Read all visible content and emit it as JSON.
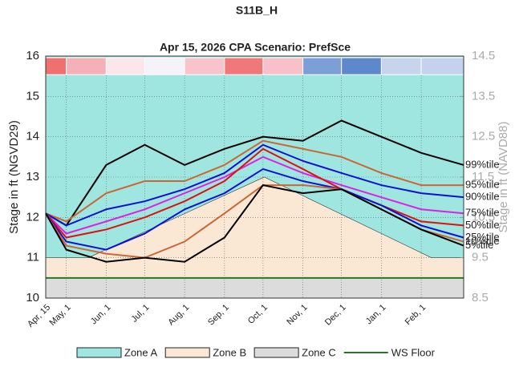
{
  "chart_data": {
    "type": "line",
    "suptitle": "S11B_H",
    "title": "Apr 15, 2026  CPA Scenario: PrefSce",
    "ylabel": "Stage in ft (NGVD29)",
    "y2label": "Stage in ft (NAVD88)",
    "xlim": [
      0,
      325
    ],
    "xticks": [
      {
        "value": 0,
        "label": "Apr, 15"
      },
      {
        "value": 16,
        "label": "May, 1"
      },
      {
        "value": 47,
        "label": "Jun, 1"
      },
      {
        "value": 77,
        "label": "Jul, 1"
      },
      {
        "value": 108,
        "label": "Aug, 1"
      },
      {
        "value": 139,
        "label": "Sep, 1"
      },
      {
        "value": 169,
        "label": "Oct, 1"
      },
      {
        "value": 200,
        "label": "Nov, 1"
      },
      {
        "value": 230,
        "label": "Dec, 1"
      },
      {
        "value": 261,
        "label": "Jan, 1"
      },
      {
        "value": 292,
        "label": "Feb, 1"
      }
    ],
    "ylim": [
      10,
      16
    ],
    "yticks": [
      10,
      11,
      12,
      13,
      14,
      15,
      16
    ],
    "y2lim": [
      8.5,
      14.5
    ],
    "y2ticks": [
      8.5,
      9.5,
      10.5,
      11.5,
      12.5,
      13.5,
      14.5
    ],
    "strip_colors": [
      "#f07070",
      "#f5b0b8",
      "#fde6ea",
      "#f5f2fa",
      "#f8c4cc",
      "#f07878",
      "#f8c0c8",
      "#7d9fd8",
      "#5e88cc",
      "#c8d4ee",
      "#c4d2ee"
    ],
    "zones": [
      {
        "name": "Zone A",
        "color": "#9ee6df"
      },
      {
        "name": "Zone B",
        "color": "#fbe8d4",
        "x": [
          0,
          33,
          170,
          300,
          325
        ],
        "values": [
          11,
          11,
          13,
          11,
          11
        ]
      },
      {
        "name": "Zone C",
        "color": "#dcdcdc"
      }
    ],
    "ws_floor": {
      "name": "WS Floor",
      "color": "#217a21",
      "value": 10.5
    },
    "x": [
      0,
      16,
      47,
      77,
      108,
      139,
      169,
      200,
      230,
      261,
      292,
      325
    ],
    "series": [
      {
        "name": "99%tile",
        "color": "#000000",
        "values": [
          12.1,
          11.8,
          13.3,
          13.8,
          13.3,
          13.7,
          14.0,
          13.9,
          14.4,
          14.0,
          13.6,
          13.3
        ]
      },
      {
        "name": "95%tile",
        "color": "#cc6633",
        "values": [
          12.1,
          11.9,
          12.6,
          12.9,
          12.9,
          13.3,
          13.9,
          13.7,
          13.5,
          13.1,
          12.8,
          12.8
        ]
      },
      {
        "name": "90%tile",
        "color": "#1010d0",
        "values": [
          12.1,
          11.8,
          12.2,
          12.4,
          12.7,
          13.1,
          13.8,
          13.4,
          13.1,
          12.8,
          12.6,
          12.5
        ]
      },
      {
        "name": "75%tile",
        "color": "#e020e0",
        "values": [
          12.1,
          11.6,
          11.9,
          12.2,
          12.6,
          13.0,
          13.5,
          13.1,
          12.8,
          12.5,
          12.2,
          12.1
        ]
      },
      {
        "name": "50%tile",
        "color": "#e01010",
        "values": [
          12.1,
          11.5,
          11.7,
          12.0,
          12.4,
          12.9,
          13.7,
          13.2,
          12.7,
          12.3,
          11.9,
          11.8
        ]
      },
      {
        "name": "25%tile",
        "color": "#1010d0",
        "values": [
          12.1,
          11.4,
          11.2,
          11.6,
          12.2,
          12.6,
          13.2,
          12.9,
          12.7,
          12.3,
          11.8,
          11.5
        ]
      },
      {
        "name": "10%tile",
        "color": "#cc6633",
        "values": [
          12.1,
          11.3,
          11.1,
          11.0,
          11.4,
          12.1,
          12.8,
          12.8,
          12.7,
          12.2,
          11.7,
          11.4
        ]
      },
      {
        "name": "5%tile",
        "color": "#000000",
        "values": [
          12.1,
          11.2,
          10.9,
          11.0,
          10.9,
          11.5,
          12.8,
          12.6,
          12.7,
          12.2,
          11.7,
          11.3
        ]
      }
    ]
  }
}
